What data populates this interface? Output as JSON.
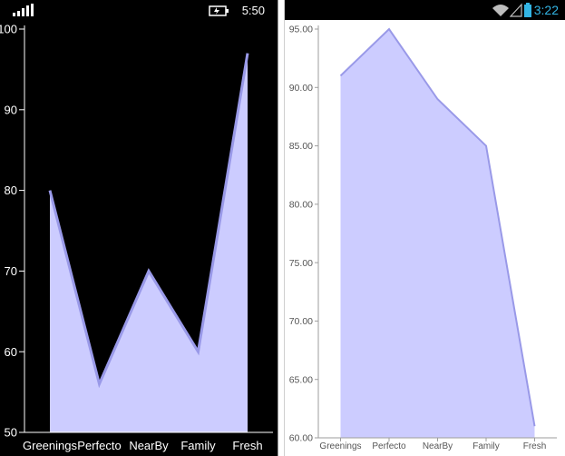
{
  "status_bars": {
    "windows_phone": {
      "time": "5:50",
      "icons": [
        "signal-bars-icon",
        "battery-charging-icon"
      ]
    },
    "android": {
      "time": "3:22",
      "icons": [
        "wifi-icon",
        "no-signal-icon",
        "battery-icon"
      ]
    }
  },
  "colors": {
    "fill": "#ccccff",
    "line": "#9999e8",
    "dark_bg": "#000000",
    "light_bg": "#ffffff",
    "android_time": "#33b5e5"
  },
  "chart_data": [
    {
      "type": "area",
      "title": "",
      "xlabel": "",
      "ylabel": "",
      "categories": [
        "Greenings",
        "Perfecto",
        "NearBy",
        "Family",
        "Fresh"
      ],
      "series": [
        {
          "values": [
            80,
            56,
            70,
            60,
            97
          ]
        }
      ],
      "ylim": [
        50,
        100
      ],
      "yticks": [
        "100",
        "90",
        "80",
        "70",
        "60",
        "50"
      ],
      "grid": false,
      "theme": "dark"
    },
    {
      "type": "area",
      "title": "",
      "xlabel": "",
      "ylabel": "",
      "categories": [
        "Greenings",
        "Perfecto",
        "NearBy",
        "Family",
        "Fresh"
      ],
      "series": [
        {
          "values": [
            91,
            95,
            89,
            85,
            61
          ]
        }
      ],
      "ylim": [
        60,
        95
      ],
      "yticks": [
        "95.00",
        "90.00",
        "85.00",
        "80.00",
        "75.00",
        "70.00",
        "65.00",
        "60.00"
      ],
      "grid": false,
      "theme": "light"
    }
  ]
}
